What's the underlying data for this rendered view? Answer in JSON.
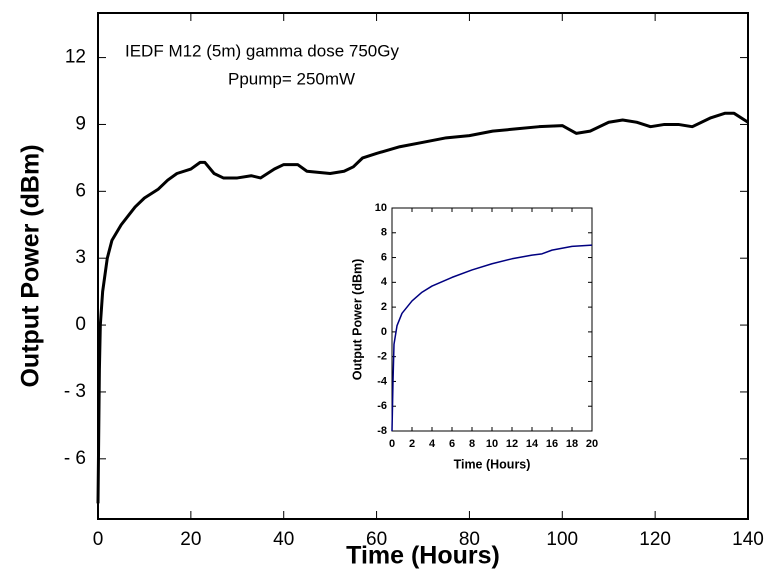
{
  "chart_data": [
    {
      "type": "line",
      "x_label": "Time (Hours)",
      "y_label": "Output Power (dBm)",
      "annotations": [
        "IEDF M12 (5m) gamma dose 750Gy",
        "Ppump= 250mW"
      ],
      "xlim": [
        0,
        140
      ],
      "ylim": [
        -8.7,
        14
      ],
      "xticks": [
        0,
        20,
        40,
        60,
        80,
        100,
        120,
        140
      ],
      "yticks": [
        {
          "value": -6,
          "label": "- 6"
        },
        {
          "value": -3,
          "label": "- 3"
        },
        0,
        3,
        6,
        9,
        12
      ],
      "series": [
        {
          "color": "#000000",
          "x": [
            0,
            0.3,
            0.5,
            1,
            2,
            3,
            5,
            8,
            10,
            13,
            15,
            17,
            20,
            22,
            23,
            25,
            27,
            30,
            33,
            35,
            38,
            40,
            43,
            45,
            50,
            53,
            55,
            57,
            60,
            65,
            70,
            75,
            80,
            85,
            90,
            95,
            100,
            103,
            106,
            110,
            113,
            116,
            119,
            122,
            125,
            128,
            132,
            135,
            137,
            140
          ],
          "values": [
            -8,
            -2,
            0,
            1.5,
            3,
            3.8,
            4.5,
            5.3,
            5.7,
            6.1,
            6.5,
            6.8,
            7.0,
            7.3,
            7.3,
            6.8,
            6.6,
            6.6,
            6.7,
            6.6,
            7.0,
            7.2,
            7.2,
            6.9,
            6.8,
            6.9,
            7.1,
            7.5,
            7.7,
            8.0,
            8.2,
            8.4,
            8.5,
            8.7,
            8.8,
            8.9,
            8.95,
            8.6,
            8.7,
            9.1,
            9.2,
            9.1,
            8.9,
            9.0,
            9.0,
            8.9,
            9.3,
            9.5,
            9.5,
            9.1
          ]
        }
      ]
    },
    {
      "type": "line",
      "x_label": "Time (Hours)",
      "y_label": "Output Power (dBm)",
      "xlim": [
        0,
        20
      ],
      "ylim": [
        -8,
        10
      ],
      "xticks": [
        0,
        2,
        4,
        6,
        8,
        10,
        12,
        14,
        16,
        18,
        20
      ],
      "yticks": [
        -8,
        -6,
        -4,
        -2,
        0,
        2,
        4,
        6,
        8,
        10
      ],
      "series": [
        {
          "color": "#000080",
          "x": [
            0,
            0.1,
            0.2,
            0.5,
            1,
            2,
            3,
            4,
            6,
            8,
            10,
            12,
            14,
            15,
            16,
            18,
            20
          ],
          "values": [
            -8,
            -4,
            -1,
            0.5,
            1.5,
            2.5,
            3.2,
            3.7,
            4.4,
            5.0,
            5.5,
            5.9,
            6.2,
            6.3,
            6.6,
            6.9,
            7.0
          ]
        }
      ]
    }
  ]
}
